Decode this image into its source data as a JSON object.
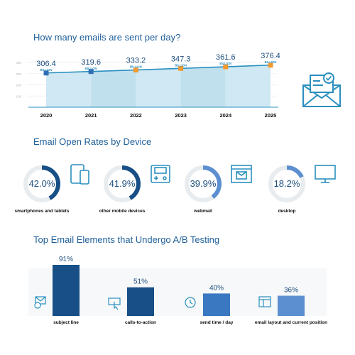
{
  "section1": {
    "title": "How many emails are sent per day?",
    "unit": "BILLION"
  },
  "section2": {
    "title": "Email Open Rates by Device",
    "devices": [
      {
        "label": "smartphones and tablets",
        "pct": "42.0%",
        "value": 42.0,
        "icon": "phone-tablet-icon"
      },
      {
        "label": "other mobile devices",
        "pct": "41.9%",
        "value": 41.9,
        "icon": "handheld-device-icon"
      },
      {
        "label": "webmail",
        "pct": "39.9%",
        "value": 39.9,
        "icon": "browser-window-icon"
      },
      {
        "label": "desktop",
        "pct": "18.2%",
        "value": 18.2,
        "icon": "monitor-icon"
      }
    ]
  },
  "section3": {
    "title": "Top Email Elements that Undergo A/B Testing"
  },
  "colors": {
    "line": "#2a8fbf",
    "area": "#cfe8f3",
    "point_early": "#2f6fb3",
    "point_late": "#f29a2e",
    "donut_track": "#e8ecef",
    "bar_dark": "#174f86",
    "bar_light": "#5c8fd0"
  },
  "chart_data": [
    {
      "type": "area",
      "categories": [
        "2020",
        "2021",
        "2022",
        "2023",
        "2024",
        "2025"
      ],
      "values": [
        306.4,
        319.6,
        333.2,
        347.3,
        361.6,
        376.4
      ],
      "data_labels": [
        "306.4",
        "319.6",
        "333.2",
        "347.3",
        "361.6",
        "376.4"
      ],
      "y_ticks": [
        "400",
        "300",
        "200",
        "100"
      ],
      "ylim": [
        0,
        400
      ],
      "grid": true
    },
    {
      "type": "bar",
      "categories": [
        "subject line",
        "calls-to-action",
        "send time / day",
        "email layout and current position"
      ],
      "values": [
        91,
        51,
        40,
        36
      ],
      "data_labels": [
        "91%",
        "51%",
        "40%",
        "36%"
      ],
      "icons": [
        "email-at-icon",
        "click-hand-icon",
        "clock-icon",
        "layout-icon"
      ],
      "ylim": [
        0,
        100
      ]
    }
  ]
}
